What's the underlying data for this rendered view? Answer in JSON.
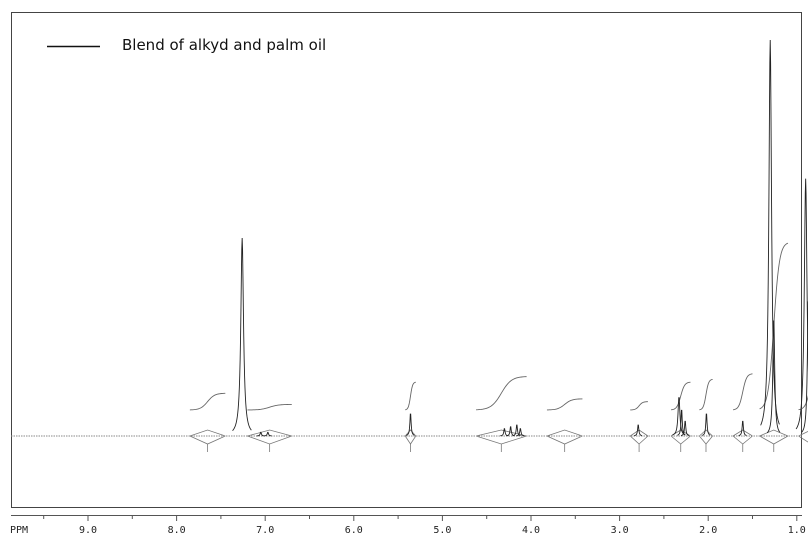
{
  "chart_data": {
    "type": "line",
    "title": "",
    "xlabel": "PPM",
    "ylabel": "",
    "x_axis_reversed": true,
    "xlim": [
      10.0,
      -0.1
    ],
    "ylim": [
      0,
      100
    ],
    "grid": false,
    "legend": {
      "placement": "top-left",
      "entries": [
        "Blend of alkyd and palm oil"
      ]
    },
    "x_ticks": [
      "9.0",
      "8.0",
      "7.0",
      "6.0",
      "5.0",
      "4.0",
      "3.0",
      "2.0",
      "1.0"
    ],
    "series": [
      {
        "name": "Blend of alkyd and palm oil",
        "peaks": [
          {
            "ppm": 7.26,
            "height": 50
          },
          {
            "ppm": 7.05,
            "height": 1
          },
          {
            "ppm": 6.97,
            "height": 1
          },
          {
            "ppm": 5.36,
            "height": 6
          },
          {
            "ppm": 4.3,
            "height": 2
          },
          {
            "ppm": 4.23,
            "height": 2.5
          },
          {
            "ppm": 4.16,
            "height": 3
          },
          {
            "ppm": 4.12,
            "height": 2
          },
          {
            "ppm": 2.79,
            "height": 3
          },
          {
            "ppm": 2.33,
            "height": 10
          },
          {
            "ppm": 2.3,
            "height": 7
          },
          {
            "ppm": 2.26,
            "height": 4
          },
          {
            "ppm": 2.02,
            "height": 6
          },
          {
            "ppm": 1.61,
            "height": 4
          },
          {
            "ppm": 1.3,
            "height": 100
          },
          {
            "ppm": 1.26,
            "height": 30
          },
          {
            "ppm": 0.9,
            "height": 65
          },
          {
            "ppm": 0.87,
            "height": 35
          }
        ],
        "integrals": [
          {
            "from": 7.85,
            "to": 7.45,
            "height": 6
          },
          {
            "from": 7.2,
            "to": 6.7,
            "height": 2
          },
          {
            "from": 5.42,
            "to": 5.3,
            "height": 10
          },
          {
            "from": 4.62,
            "to": 4.05,
            "height": 12
          },
          {
            "from": 3.82,
            "to": 3.42,
            "height": 4
          },
          {
            "from": 2.88,
            "to": 2.68,
            "height": 3
          },
          {
            "from": 2.42,
            "to": 2.2,
            "height": 10
          },
          {
            "from": 2.1,
            "to": 1.95,
            "height": 11
          },
          {
            "from": 1.72,
            "to": 1.5,
            "height": 13
          },
          {
            "from": 1.42,
            "to": 1.1,
            "height": 60
          },
          {
            "from": 0.98,
            "to": 0.7,
            "height": 20
          }
        ]
      }
    ]
  }
}
